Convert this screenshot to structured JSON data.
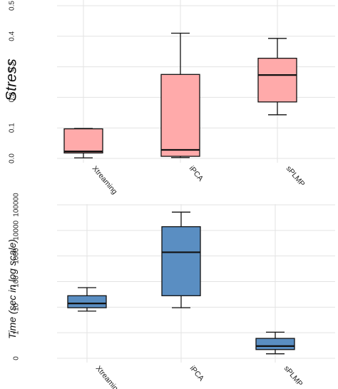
{
  "chart_data": [
    {
      "type": "box",
      "ylabel": "Stress",
      "categories": [
        "Xtreaming",
        "iPCA",
        "sPLMP"
      ],
      "y_ticks": [
        "0.0",
        "0.1",
        "0.2",
        "0.3",
        "0.4",
        "0.5"
      ],
      "ylim": [
        0,
        0.5
      ],
      "grid": true,
      "box_color": "#ffaaaa",
      "boxes": [
        {
          "category": "Xtreaming",
          "min": 0.002,
          "q1": 0.018,
          "median": 0.023,
          "q3": 0.097,
          "max": 0.098
        },
        {
          "category": "iPCA",
          "min": 0.003,
          "q1": 0.007,
          "median": 0.028,
          "q3": 0.275,
          "max": 0.41
        },
        {
          "category": "sPLMP",
          "min": 0.143,
          "q1": 0.185,
          "median": 0.273,
          "q3": 0.328,
          "max": 0.393
        }
      ]
    },
    {
      "type": "box",
      "ylabel": "Time (sec in log scale)",
      "y_scale": "log",
      "categories": [
        "Xtreaming",
        "iPCA",
        "sPLMP"
      ],
      "y_ticks": [
        "0",
        "1",
        "10",
        "100",
        "1000",
        "10000",
        "100000"
      ],
      "y_tick_values": [
        0.1,
        1,
        10,
        100,
        1000,
        10000,
        100000
      ],
      "grid": true,
      "box_color": "#5a8ec2",
      "boxes": [
        {
          "category": "Xtreaming",
          "min": 7,
          "q1": 9.5,
          "median": 14,
          "q3": 28,
          "max": 58
        },
        {
          "category": "iPCA",
          "min": 9.5,
          "q1": 28,
          "median": 1400,
          "q3": 14000,
          "max": 52000
        },
        {
          "category": "sPLMP",
          "min": 0.15,
          "q1": 0.22,
          "median": 0.3,
          "q3": 0.6,
          "max": 1.05
        }
      ]
    }
  ]
}
